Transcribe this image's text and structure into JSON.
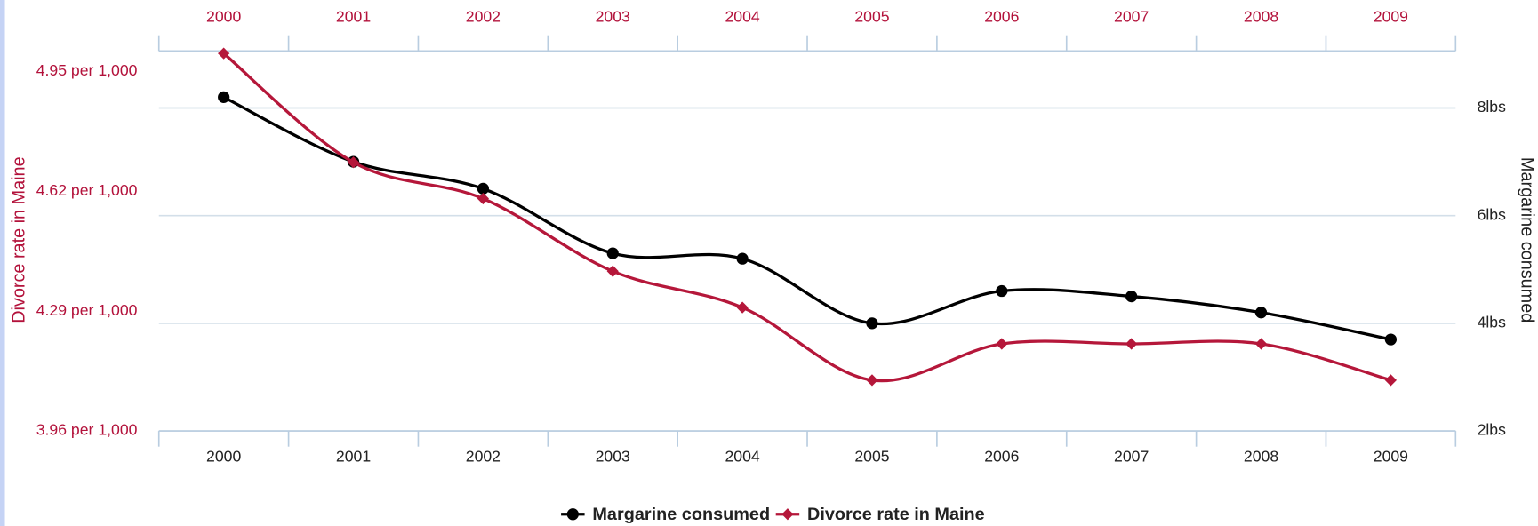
{
  "chart_data": {
    "type": "line",
    "y_label": "Divorce rate in Maine",
    "y2_label": "Margarine consumed",
    "categories": [
      "2000",
      "2001",
      "2002",
      "2003",
      "2004",
      "2005",
      "2006",
      "2007",
      "2008",
      "2009"
    ],
    "series": [
      {
        "name": "Margarine consumed",
        "color": "#000000",
        "axis": "y2",
        "marker": "circle",
        "values": [
          8.2,
          7,
          6.5,
          5.3,
          5.2,
          4,
          4.6,
          4.5,
          4.2,
          3.7
        ]
      },
      {
        "name": "Divorce rate in Maine",
        "color": "#b5173a",
        "axis": "y",
        "marker": "diamond",
        "values": [
          5,
          4.7,
          4.6,
          4.4,
          4.3,
          4.1,
          4.2,
          4.2,
          4.2,
          4.1
        ]
      }
    ],
    "ylim": [
      3.96,
      5.05
    ],
    "yticks": [
      {
        "value": 3.96,
        "label": "3.96 per 1,000"
      },
      {
        "value": 4.29,
        "label": "4.29 per 1,000"
      },
      {
        "value": 4.62,
        "label": "4.62 per 1,000"
      },
      {
        "value": 4.95,
        "label": "4.95 per 1,000"
      }
    ],
    "y2lim": [
      2,
      9.35
    ],
    "y2ticks": [
      {
        "value": 2,
        "label": "2lbs"
      },
      {
        "value": 4,
        "label": "4lbs"
      },
      {
        "value": 6,
        "label": "6lbs"
      },
      {
        "value": 8,
        "label": "8lbs"
      }
    ],
    "grid": true,
    "legend": "bottom"
  }
}
